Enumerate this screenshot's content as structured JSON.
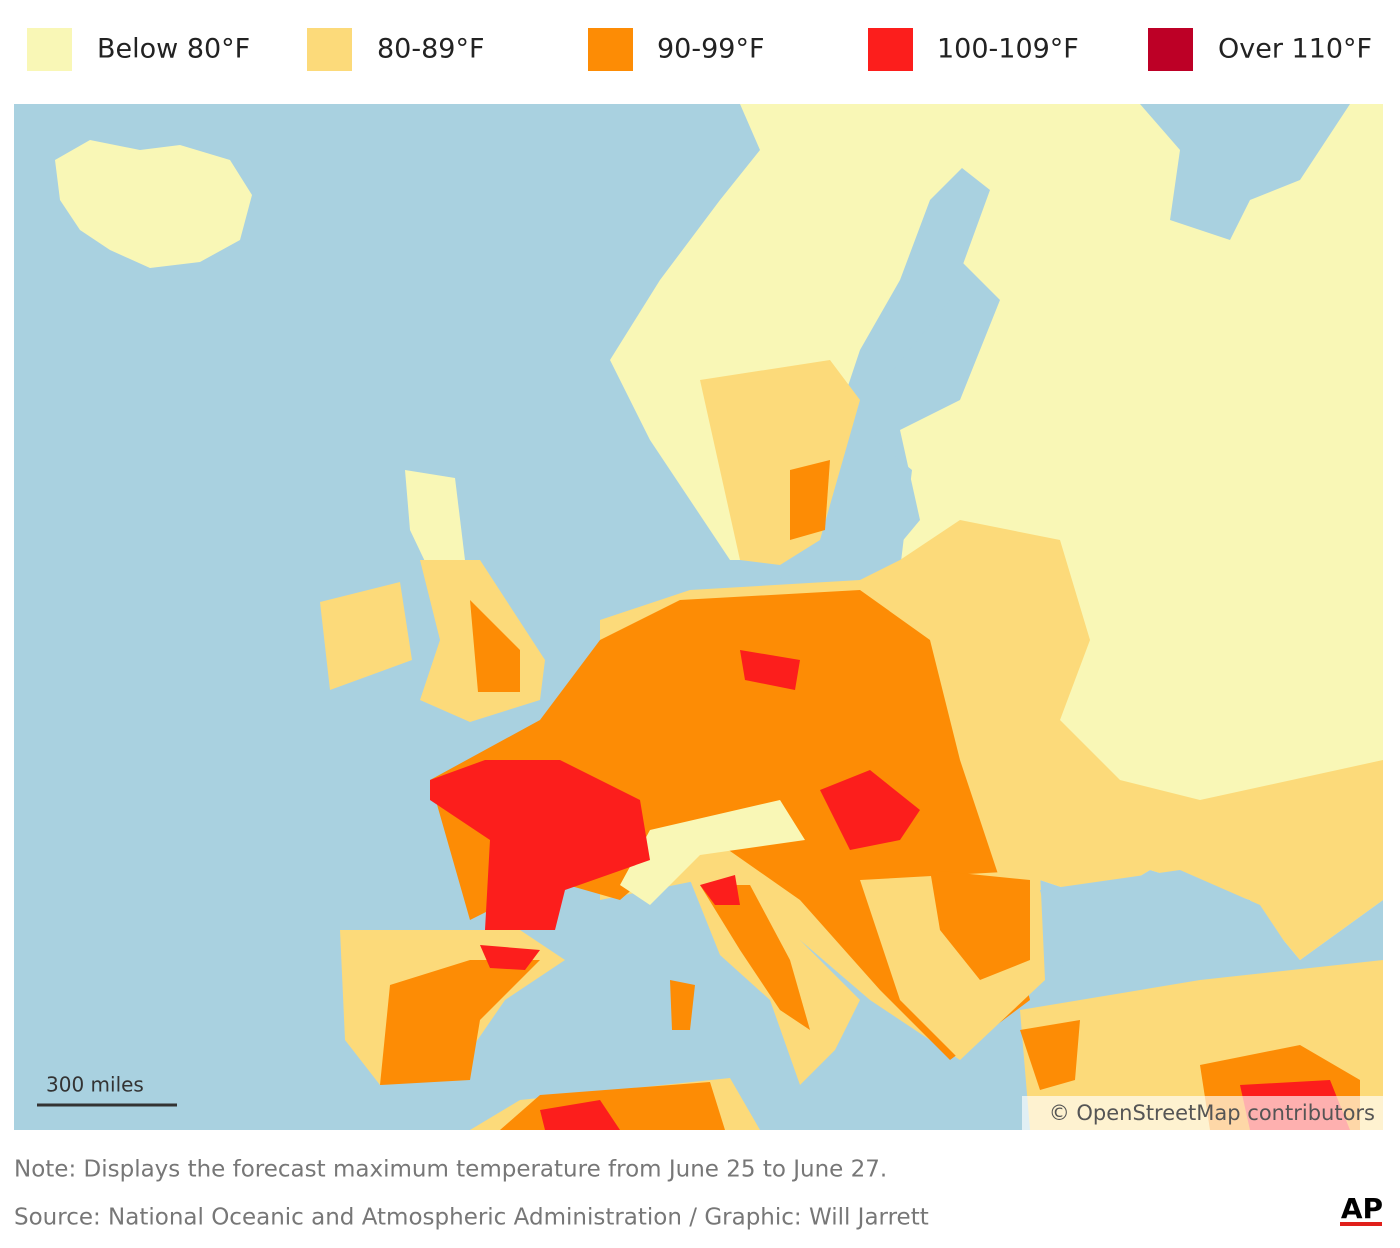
{
  "legend": [
    {
      "label": "Below 80°F",
      "color": "#f9f7b6"
    },
    {
      "label": "80-89°F",
      "color": "#fcda7a"
    },
    {
      "label": "90-99°F",
      "color": "#fd8c05"
    },
    {
      "label": "100-109°F",
      "color": "#fc1e1c"
    },
    {
      "label": "Over 110°F",
      "color": "#bd0026"
    }
  ],
  "map": {
    "scale_label": "300 miles",
    "attribution": "© OpenStreetMap contributors"
  },
  "note": "Note: Displays the forecast maximum temperature from June 25 to June 27.",
  "source": "Source: National Oceanic and Atmospheric Administration / Graphic: Will Jarrett",
  "logo": "AP"
}
